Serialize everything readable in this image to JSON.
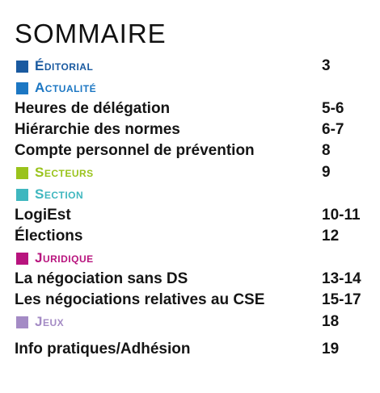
{
  "title": "SOMMAIRE",
  "colors": {
    "editorial": "#1a5aa0",
    "actualite": "#1c77c3",
    "secteurs": "#9ac31c",
    "section": "#3fb7bf",
    "juridique": "#b8147e",
    "jeux": "#a48bc5"
  },
  "sections": {
    "editorial": {
      "label": "Éditorial",
      "page": "3"
    },
    "actualite": {
      "label": "Actualité"
    },
    "secteurs": {
      "label": "Secteurs",
      "page": "9"
    },
    "section": {
      "label": "Section"
    },
    "juridique": {
      "label": "Juridique"
    },
    "jeux": {
      "label": "Jeux",
      "page": "18"
    }
  },
  "entries": {
    "heures": {
      "label": "Heures de délégation",
      "page": "5-6"
    },
    "hierarchie": {
      "label": "Hiérarchie des normes",
      "page": "6-7"
    },
    "compte": {
      "label": "Compte personnel de prévention",
      "page": "8"
    },
    "logiest": {
      "label": "LogiEst",
      "page": "10-11"
    },
    "elections": {
      "label": "Élections",
      "page": "12"
    },
    "negociation_ds": {
      "label": "La négociation sans DS",
      "page": "13-14"
    },
    "negociations_cse": {
      "label": "Les négociations relatives au CSE",
      "page": "15-17"
    },
    "info": {
      "label": "Info pratiques/Adhésion",
      "page": "19"
    }
  }
}
